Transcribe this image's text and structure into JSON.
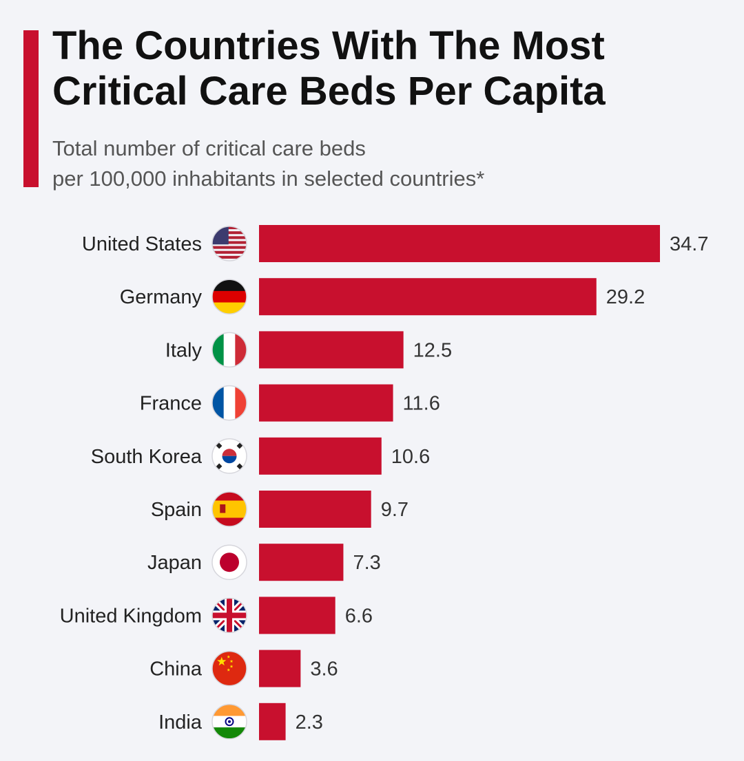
{
  "header": {
    "title_line1": "The Countries With The Most",
    "title_line2": "Critical Care Beds Per Capita",
    "subtitle_line1": "Total number of critical care beds",
    "subtitle_line2": "per 100,000 inhabitants in selected countries*"
  },
  "colors": {
    "bar": "#c8102e",
    "accent": "#c8102e"
  },
  "chart_data": {
    "type": "bar",
    "orientation": "horizontal",
    "title": "The Countries With The Most Critical Care Beds Per Capita",
    "subtitle": "Total number of critical care beds per 100,000 inhabitants in selected countries*",
    "categories": [
      "United States",
      "Germany",
      "Italy",
      "France",
      "South Korea",
      "Spain",
      "Japan",
      "United Kingdom",
      "China",
      "India"
    ],
    "values": [
      34.7,
      29.2,
      12.5,
      11.6,
      10.6,
      9.7,
      7.3,
      6.6,
      3.6,
      2.3
    ],
    "value_labels": [
      "34.7",
      "29.2",
      "12.5",
      "11.6",
      "10.6",
      "9.7",
      "7.3",
      "6.6",
      "3.6",
      "2.3"
    ],
    "flag_icons": [
      "us-flag-icon",
      "germany-flag-icon",
      "italy-flag-icon",
      "france-flag-icon",
      "south-korea-flag-icon",
      "spain-flag-icon",
      "japan-flag-icon",
      "uk-flag-icon",
      "china-flag-icon",
      "india-flag-icon"
    ],
    "xlim": [
      0,
      34.7
    ],
    "xlabel": "",
    "ylabel": "",
    "grid": false,
    "legend": "none"
  }
}
